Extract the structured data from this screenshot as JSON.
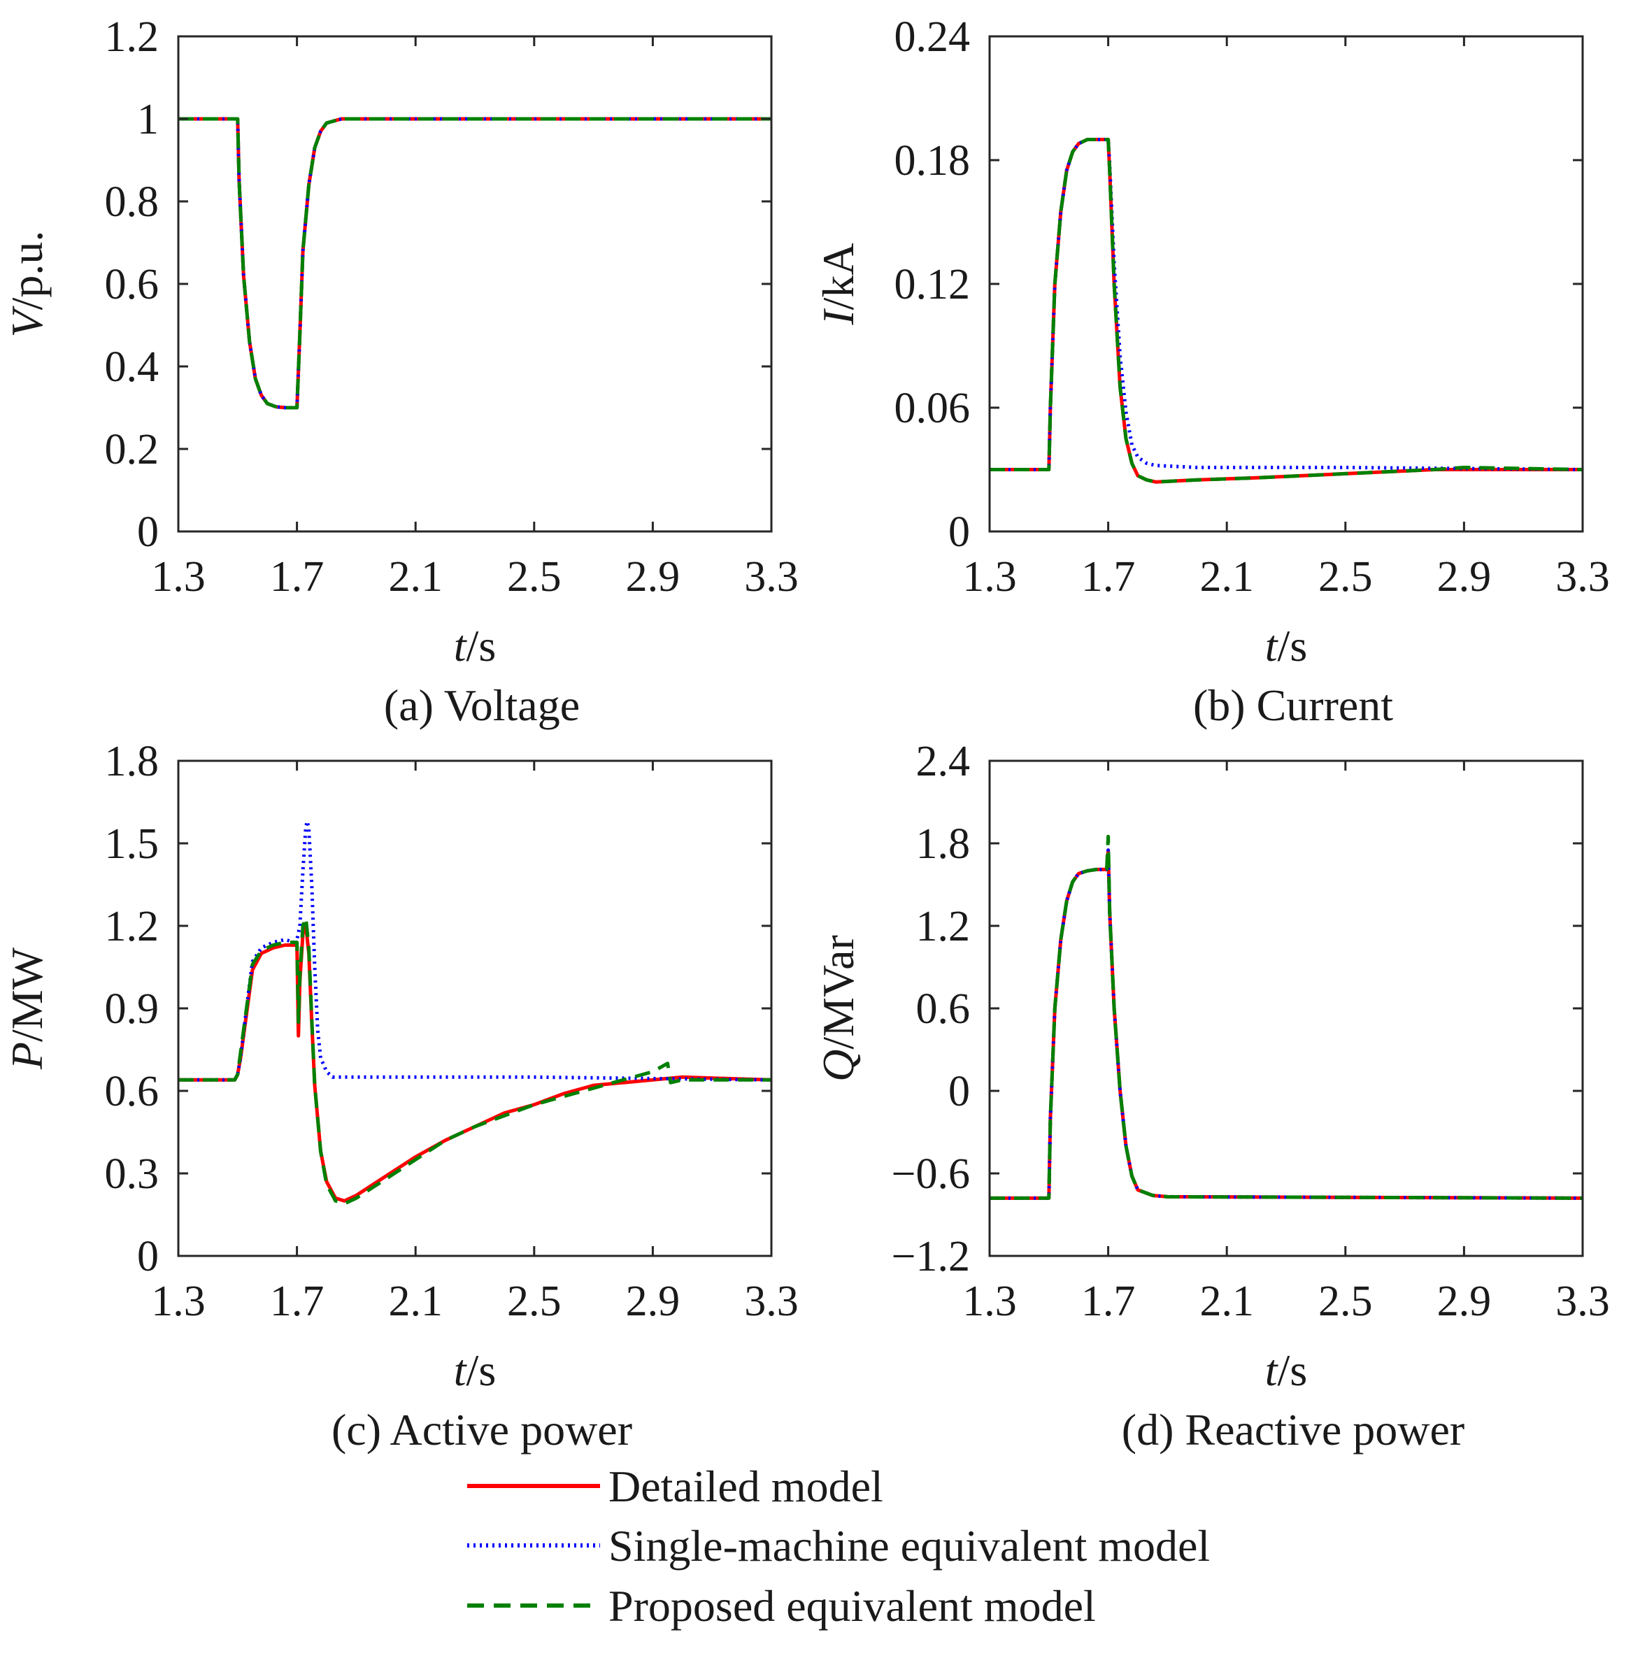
{
  "chart_data": [
    {
      "id": "a",
      "type": "line",
      "caption": "(a) Voltage",
      "xlabel": "t/s",
      "xlabel_var": "t",
      "xlabel_unit": "/s",
      "ylabel": "V/p.u.",
      "ylabel_var": "V",
      "ylabel_unit": "/p.u.",
      "xlim": [
        1.3,
        3.3
      ],
      "ylim": [
        0,
        1.2
      ],
      "xticks": [
        "1.3",
        "1.7",
        "2.1",
        "2.5",
        "2.9",
        "3.3"
      ],
      "yticks": [
        "0",
        "0.2",
        "0.4",
        "0.6",
        "0.8",
        "1",
        "1.2"
      ],
      "series": [
        {
          "name": "Detailed model",
          "x": [
            1.3,
            1.5,
            1.505,
            1.52,
            1.54,
            1.56,
            1.58,
            1.6,
            1.63,
            1.66,
            1.7,
            1.71,
            1.72,
            1.74,
            1.76,
            1.78,
            1.8,
            1.85,
            1.9,
            3.3
          ],
          "y": [
            1.0,
            1.0,
            0.85,
            0.62,
            0.46,
            0.37,
            0.33,
            0.31,
            0.302,
            0.3,
            0.3,
            0.48,
            0.68,
            0.84,
            0.93,
            0.97,
            0.99,
            1.0,
            1.0,
            1.0
          ]
        },
        {
          "name": "Single-machine equivalent model",
          "x": [
            1.3,
            1.5,
            1.505,
            1.52,
            1.54,
            1.56,
            1.58,
            1.6,
            1.63,
            1.66,
            1.7,
            1.71,
            1.72,
            1.74,
            1.76,
            1.78,
            1.8,
            1.85,
            1.9,
            3.3
          ],
          "y": [
            1.0,
            1.0,
            0.85,
            0.62,
            0.46,
            0.37,
            0.33,
            0.31,
            0.302,
            0.3,
            0.3,
            0.48,
            0.68,
            0.84,
            0.93,
            0.97,
            0.99,
            1.0,
            1.0,
            1.0
          ]
        },
        {
          "name": "Proposed equivalent model",
          "x": [
            1.3,
            1.5,
            1.505,
            1.52,
            1.54,
            1.56,
            1.58,
            1.6,
            1.63,
            1.66,
            1.7,
            1.71,
            1.72,
            1.74,
            1.76,
            1.78,
            1.8,
            1.85,
            1.9,
            3.3
          ],
          "y": [
            1.0,
            1.0,
            0.85,
            0.62,
            0.46,
            0.37,
            0.33,
            0.31,
            0.302,
            0.3,
            0.3,
            0.48,
            0.68,
            0.84,
            0.93,
            0.97,
            0.99,
            1.0,
            1.0,
            1.0
          ]
        }
      ]
    },
    {
      "id": "b",
      "type": "line",
      "caption": "(b) Current",
      "xlabel": "t/s",
      "xlabel_var": "t",
      "xlabel_unit": "/s",
      "ylabel": "I/kA",
      "ylabel_var": "I",
      "ylabel_unit": "/kA",
      "xlim": [
        1.3,
        3.3
      ],
      "ylim": [
        0,
        0.24
      ],
      "xticks": [
        "1.3",
        "1.7",
        "2.1",
        "2.5",
        "2.9",
        "3.3"
      ],
      "yticks": [
        "0",
        "0.06",
        "0.12",
        "0.18",
        "0.24"
      ],
      "series": [
        {
          "name": "Detailed model",
          "x": [
            1.3,
            1.5,
            1.505,
            1.52,
            1.54,
            1.56,
            1.58,
            1.6,
            1.63,
            1.66,
            1.7,
            1.705,
            1.72,
            1.74,
            1.76,
            1.78,
            1.8,
            1.83,
            1.86,
            2.0,
            2.2,
            2.5,
            2.8,
            3.3
          ],
          "y": [
            0.03,
            0.03,
            0.06,
            0.12,
            0.155,
            0.175,
            0.184,
            0.188,
            0.19,
            0.19,
            0.19,
            0.175,
            0.12,
            0.07,
            0.045,
            0.033,
            0.027,
            0.025,
            0.024,
            0.025,
            0.026,
            0.028,
            0.03,
            0.03
          ]
        },
        {
          "name": "Single-machine equivalent model",
          "x": [
            1.3,
            1.5,
            1.505,
            1.52,
            1.54,
            1.56,
            1.58,
            1.6,
            1.63,
            1.66,
            1.7,
            1.705,
            1.72,
            1.74,
            1.76,
            1.78,
            1.8,
            1.83,
            1.86,
            2.0,
            2.5,
            3.3
          ],
          "y": [
            0.03,
            0.03,
            0.06,
            0.12,
            0.155,
            0.175,
            0.184,
            0.188,
            0.19,
            0.19,
            0.19,
            0.178,
            0.13,
            0.085,
            0.058,
            0.042,
            0.036,
            0.033,
            0.032,
            0.031,
            0.031,
            0.03
          ]
        },
        {
          "name": "Proposed equivalent model",
          "x": [
            1.3,
            1.5,
            1.505,
            1.52,
            1.54,
            1.56,
            1.58,
            1.6,
            1.63,
            1.66,
            1.7,
            1.705,
            1.72,
            1.74,
            1.76,
            1.78,
            1.8,
            1.83,
            1.86,
            2.0,
            2.2,
            2.5,
            2.8,
            2.9,
            3.3
          ],
          "y": [
            0.03,
            0.03,
            0.06,
            0.12,
            0.155,
            0.175,
            0.184,
            0.188,
            0.19,
            0.19,
            0.19,
            0.175,
            0.12,
            0.07,
            0.045,
            0.033,
            0.027,
            0.025,
            0.024,
            0.025,
            0.026,
            0.028,
            0.03,
            0.031,
            0.03
          ]
        }
      ]
    },
    {
      "id": "c",
      "type": "line",
      "caption": "(c) Active power",
      "xlabel": "t/s",
      "xlabel_var": "t",
      "xlabel_unit": "/s",
      "ylabel": "P/MW",
      "ylabel_var": "P",
      "ylabel_unit": "/MW",
      "xlim": [
        1.3,
        3.3
      ],
      "ylim": [
        0,
        1.8
      ],
      "xticks": [
        "1.3",
        "1.7",
        "2.1",
        "2.5",
        "2.9",
        "3.3"
      ],
      "yticks": [
        "0",
        "0.3",
        "0.6",
        "0.9",
        "1.2",
        "1.5",
        "1.8"
      ],
      "series": [
        {
          "name": "Detailed model",
          "x": [
            1.3,
            1.49,
            1.5,
            1.51,
            1.53,
            1.55,
            1.58,
            1.62,
            1.66,
            1.69,
            1.7,
            1.705,
            1.71,
            1.72,
            1.73,
            1.74,
            1.75,
            1.76,
            1.78,
            1.8,
            1.83,
            1.86,
            1.9,
            2.0,
            2.1,
            2.2,
            2.3,
            2.4,
            2.5,
            2.6,
            2.7,
            2.8,
            2.9,
            3.0,
            3.3
          ],
          "y": [
            0.64,
            0.64,
            0.66,
            0.72,
            0.88,
            1.04,
            1.1,
            1.12,
            1.13,
            1.13,
            1.13,
            0.8,
            1.0,
            1.17,
            1.2,
            1.1,
            0.85,
            0.62,
            0.38,
            0.27,
            0.21,
            0.2,
            0.22,
            0.29,
            0.36,
            0.42,
            0.47,
            0.52,
            0.55,
            0.59,
            0.62,
            0.63,
            0.64,
            0.65,
            0.64
          ]
        },
        {
          "name": "Single-machine equivalent model",
          "x": [
            1.3,
            1.49,
            1.5,
            1.51,
            1.53,
            1.55,
            1.58,
            1.62,
            1.66,
            1.69,
            1.7,
            1.71,
            1.72,
            1.73,
            1.735,
            1.74,
            1.75,
            1.76,
            1.77,
            1.78,
            1.8,
            1.82,
            1.85,
            1.9,
            2.0,
            2.5,
            3.3
          ],
          "y": [
            0.64,
            0.64,
            0.66,
            0.72,
            0.9,
            1.07,
            1.12,
            1.14,
            1.15,
            1.14,
            1.15,
            1.2,
            1.4,
            1.56,
            1.58,
            1.55,
            1.35,
            1.05,
            0.82,
            0.72,
            0.67,
            0.65,
            0.65,
            0.65,
            0.65,
            0.65,
            0.64
          ]
        },
        {
          "name": "Proposed equivalent model",
          "x": [
            1.3,
            1.49,
            1.5,
            1.51,
            1.53,
            1.55,
            1.58,
            1.62,
            1.66,
            1.69,
            1.7,
            1.705,
            1.71,
            1.72,
            1.73,
            1.74,
            1.75,
            1.76,
            1.78,
            1.8,
            1.83,
            1.86,
            1.9,
            2.0,
            2.1,
            2.2,
            2.3,
            2.4,
            2.5,
            2.6,
            2.7,
            2.8,
            2.9,
            2.95,
            2.96,
            3.0,
            3.3
          ],
          "y": [
            0.64,
            0.64,
            0.66,
            0.74,
            0.9,
            1.06,
            1.11,
            1.13,
            1.14,
            1.14,
            1.14,
            0.85,
            1.02,
            1.2,
            1.23,
            1.12,
            0.86,
            0.62,
            0.38,
            0.26,
            0.2,
            0.19,
            0.21,
            0.28,
            0.35,
            0.42,
            0.47,
            0.51,
            0.55,
            0.58,
            0.61,
            0.64,
            0.67,
            0.7,
            0.63,
            0.64,
            0.64
          ]
        }
      ]
    },
    {
      "id": "d",
      "type": "line",
      "caption": "(d) Reactive power",
      "xlabel": "t/s",
      "xlabel_var": "t",
      "xlabel_unit": "/s",
      "ylabel": "Q/MVar",
      "ylabel_var": "Q",
      "ylabel_unit": "/MVar",
      "xlim": [
        1.3,
        3.3
      ],
      "ylim": [
        -1.2,
        2.4
      ],
      "xticks": [
        "1.3",
        "1.7",
        "2.1",
        "2.5",
        "2.9",
        "3.3"
      ],
      "yticks": [
        "−1.2",
        "−0.6",
        "0",
        "0.6",
        "1.2",
        "1.8",
        "2.4"
      ],
      "series": [
        {
          "name": "Detailed model",
          "x": [
            1.3,
            1.5,
            1.505,
            1.52,
            1.54,
            1.56,
            1.58,
            1.6,
            1.63,
            1.66,
            1.695,
            1.7,
            1.705,
            1.72,
            1.74,
            1.76,
            1.78,
            1.8,
            1.85,
            1.9,
            3.3
          ],
          "y": [
            -0.78,
            -0.78,
            -0.2,
            0.6,
            1.1,
            1.38,
            1.52,
            1.58,
            1.6,
            1.61,
            1.61,
            1.75,
            1.3,
            0.6,
            0.0,
            -0.4,
            -0.62,
            -0.72,
            -0.76,
            -0.77,
            -0.78
          ]
        },
        {
          "name": "Single-machine equivalent model",
          "x": [
            1.3,
            1.5,
            1.505,
            1.52,
            1.54,
            1.56,
            1.58,
            1.6,
            1.63,
            1.66,
            1.695,
            1.7,
            1.705,
            1.72,
            1.74,
            1.76,
            1.78,
            1.8,
            1.85,
            1.9,
            3.3
          ],
          "y": [
            -0.78,
            -0.78,
            -0.2,
            0.6,
            1.1,
            1.38,
            1.52,
            1.58,
            1.6,
            1.61,
            1.61,
            1.75,
            1.3,
            0.6,
            0.0,
            -0.4,
            -0.62,
            -0.72,
            -0.76,
            -0.77,
            -0.78
          ]
        },
        {
          "name": "Proposed equivalent model",
          "x": [
            1.3,
            1.5,
            1.505,
            1.52,
            1.54,
            1.56,
            1.58,
            1.6,
            1.63,
            1.66,
            1.695,
            1.7,
            1.705,
            1.72,
            1.74,
            1.76,
            1.78,
            1.8,
            1.85,
            1.9,
            3.3
          ],
          "y": [
            -0.78,
            -0.78,
            -0.2,
            0.6,
            1.1,
            1.38,
            1.52,
            1.58,
            1.6,
            1.61,
            1.61,
            1.85,
            1.3,
            0.6,
            0.0,
            -0.4,
            -0.62,
            -0.72,
            -0.76,
            -0.77,
            -0.78
          ]
        }
      ]
    }
  ],
  "legend": {
    "placement": "bottom-center",
    "entries": [
      {
        "label": "Detailed model",
        "color": "#ff0000",
        "style": "solid"
      },
      {
        "label": "Single-machine equivalent model",
        "color": "#0000ff",
        "style": "dotted"
      },
      {
        "label": "Proposed equivalent model",
        "color": "#008000",
        "style": "dashed"
      }
    ]
  }
}
